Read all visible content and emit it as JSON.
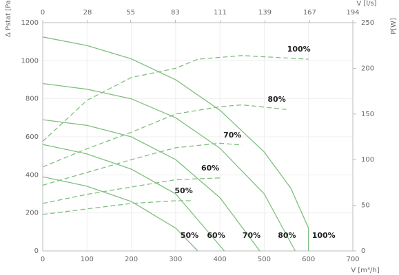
{
  "chart_data": {
    "type": "line",
    "ylabel": "Δ Pstat [Pa]",
    "y2label": "P[W]",
    "xlabel": "V [m³/h]",
    "x2label": "V [l/s]",
    "xlim": [
      0,
      700
    ],
    "xticks": [
      0,
      100,
      200,
      300,
      400,
      500,
      600,
      700
    ],
    "x2lim": [
      0,
      194
    ],
    "x2ticks": [
      0,
      28,
      55,
      83,
      111,
      139,
      167,
      194
    ],
    "ylim": [
      0,
      1200
    ],
    "yticks": [
      0,
      200,
      400,
      600,
      800,
      1000,
      1200
    ],
    "y2lim": [
      0,
      250
    ],
    "y2ticks": [
      0,
      50,
      100,
      150,
      200,
      250
    ],
    "grid": true,
    "series": [
      {
        "name": "100%",
        "color": "#7fbf7f",
        "x": [
          0,
          100,
          200,
          300,
          400,
          500,
          560,
          600,
          600
        ],
        "values": [
          1125,
          1080,
          1010,
          900,
          740,
          520,
          330,
          120,
          0
        ]
      },
      {
        "name": "80%",
        "color": "#7fbf7f",
        "x": [
          0,
          100,
          200,
          300,
          400,
          500,
          570
        ],
        "values": [
          880,
          850,
          800,
          700,
          540,
          300,
          0
        ]
      },
      {
        "name": "70%",
        "color": "#7fbf7f",
        "x": [
          0,
          100,
          200,
          300,
          400,
          490
        ],
        "values": [
          690,
          660,
          600,
          480,
          280,
          0
        ]
      },
      {
        "name": "60%",
        "color": "#7fbf7f",
        "x": [
          0,
          100,
          200,
          300,
          410
        ],
        "values": [
          560,
          510,
          430,
          300,
          0
        ]
      },
      {
        "name": "50%",
        "color": "#7fbf7f",
        "x": [
          0,
          100,
          200,
          300,
          350
        ],
        "values": [
          390,
          340,
          260,
          120,
          0
        ]
      },
      {
        "name": "100%",
        "color": "#7fbf7f",
        "axis": "y2",
        "dashed": true,
        "x": [
          0,
          100,
          200,
          300,
          350,
          450,
          600
        ],
        "values": [
          120,
          165,
          190,
          200,
          210,
          214,
          210
        ]
      },
      {
        "name": "80%",
        "color": "#7fbf7f",
        "axis": "y2",
        "dashed": true,
        "x": [
          0,
          100,
          200,
          300,
          400,
          450,
          550
        ],
        "values": [
          92,
          112,
          130,
          150,
          158,
          160,
          155
        ]
      },
      {
        "name": "70%",
        "color": "#7fbf7f",
        "axis": "y2",
        "dashed": true,
        "x": [
          0,
          100,
          200,
          300,
          400,
          450
        ],
        "values": [
          72,
          86,
          100,
          113,
          118,
          116
        ]
      },
      {
        "name": "60%",
        "color": "#7fbf7f",
        "axis": "y2",
        "dashed": true,
        "x": [
          0,
          100,
          200,
          300,
          400
        ],
        "values": [
          52,
          62,
          70,
          78,
          80
        ]
      },
      {
        "name": "50%",
        "color": "#7fbf7f",
        "axis": "y2",
        "dashed": true,
        "x": [
          0,
          100,
          200,
          300,
          340
        ],
        "values": [
          40,
          46,
          52,
          55,
          55
        ]
      }
    ]
  }
}
